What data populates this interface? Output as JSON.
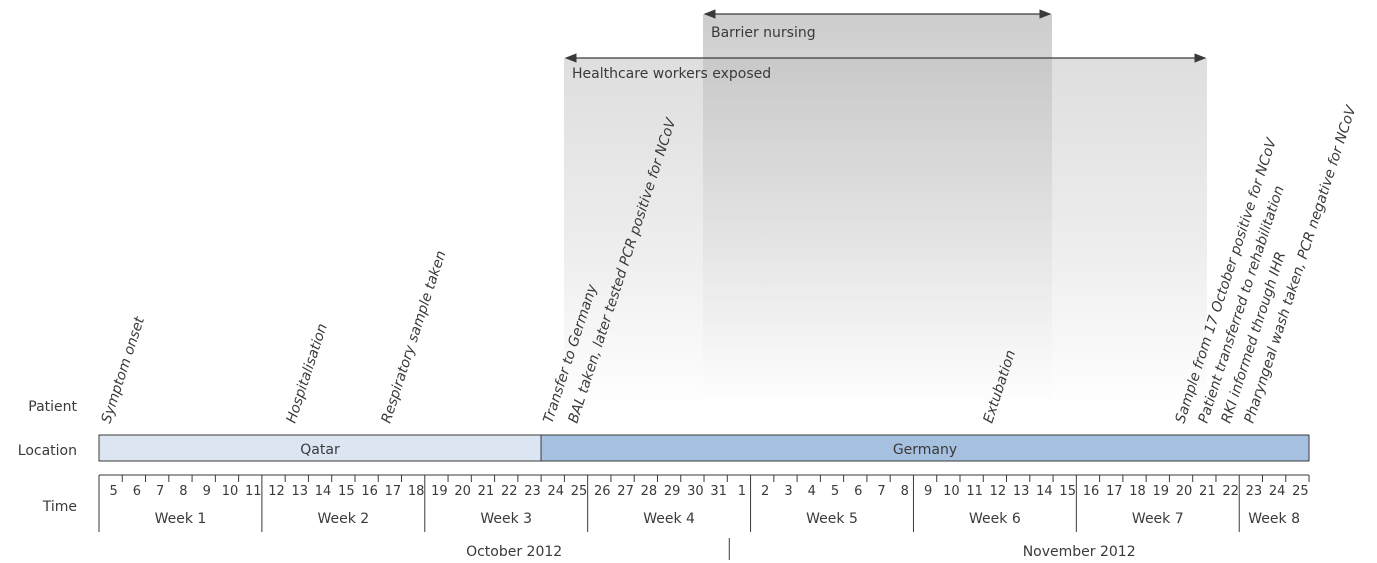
{
  "row_labels": {
    "patient": "Patient",
    "location": "Location",
    "time": "Time"
  },
  "spans": {
    "healthcare": {
      "label": "Healthcare workers exposed"
    },
    "barrier": {
      "label": "Barrier nursing"
    }
  },
  "locations": [
    {
      "label": "Qatar",
      "color": "#dce6f3"
    },
    {
      "label": "Germany",
      "color": "#a6c0e0"
    }
  ],
  "days": [
    "5",
    "6",
    "7",
    "8",
    "9",
    "10",
    "11",
    "12",
    "13",
    "14",
    "15",
    "16",
    "17",
    "18",
    "19",
    "20",
    "21",
    "22",
    "23",
    "24",
    "25",
    "26",
    "27",
    "28",
    "29",
    "30",
    "31",
    "1",
    "2",
    "3",
    "4",
    "5",
    "6",
    "7",
    "8",
    "9",
    "10",
    "11",
    "12",
    "13",
    "14",
    "15",
    "16",
    "17",
    "18",
    "19",
    "20",
    "21",
    "22",
    "23",
    "24",
    "25"
  ],
  "weeks": [
    "Week 1",
    "Week 2",
    "Week 3",
    "Week 4",
    "Week 5",
    "Week 6",
    "Week 7",
    "Week 8"
  ],
  "months": [
    "October 2012",
    "November 2012"
  ],
  "events": [
    {
      "label": "Symptom onset"
    },
    {
      "label": "Hospitalisation"
    },
    {
      "label": "Respiratory sample taken"
    },
    {
      "label": "Transfer to Germany"
    },
    {
      "label": "BAL taken, later tested PCR positive for NCoV"
    },
    {
      "label": "Extubation"
    },
    {
      "label": "Sample from 17 October positive for NCoV"
    },
    {
      "label": "Patient transferred to rehabilitation"
    },
    {
      "label": "RKI informed through IHR"
    },
    {
      "label": "Pharyngeal wash taken, PCR negative for NCoV"
    }
  ],
  "colors": {
    "line": "#3a3a3a",
    "shade": "#cccccc"
  }
}
